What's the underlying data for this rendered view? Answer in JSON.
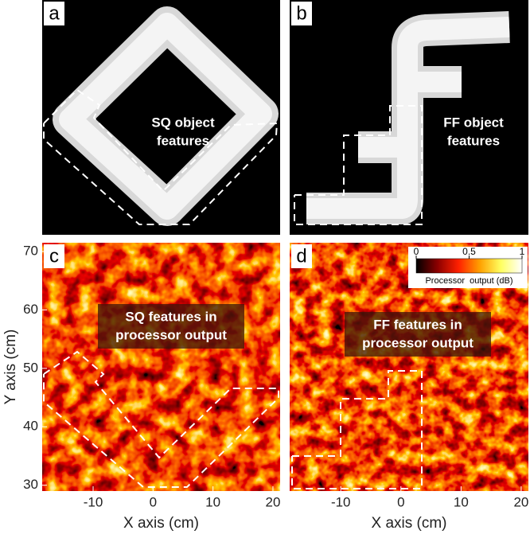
{
  "panels": [
    {
      "label": "a",
      "caption": [
        "SQ object",
        "features"
      ]
    },
    {
      "label": "b",
      "caption": [
        "FF object",
        "features"
      ]
    },
    {
      "label": "c",
      "caption": [
        "SQ features in",
        "processor output"
      ],
      "xlabel": "X axis (cm)",
      "ylabel": "Y axis (cm)",
      "xlim": [
        -18.5,
        21.2
      ],
      "ylim": [
        29,
        71.5
      ],
      "xticks": [
        -10,
        0,
        10,
        20
      ],
      "yticks": [
        30,
        40,
        50,
        60,
        70
      ]
    },
    {
      "label": "d",
      "caption": [
        "FF features in",
        "processor output"
      ],
      "xlabel": "X axis (cm)",
      "xlim": [
        -18.5,
        21.2
      ],
      "xticks": [
        -10,
        0,
        10,
        20
      ]
    }
  ],
  "colorbar": {
    "lim": [
      0,
      1
    ],
    "ticks": [
      0,
      0.5,
      1
    ],
    "label": "Processor  output (dB)",
    "colors": [
      "#000000",
      "#8b0000",
      "#ff2000",
      "#ffa000",
      "#ffff60",
      "#ffffff"
    ]
  }
}
